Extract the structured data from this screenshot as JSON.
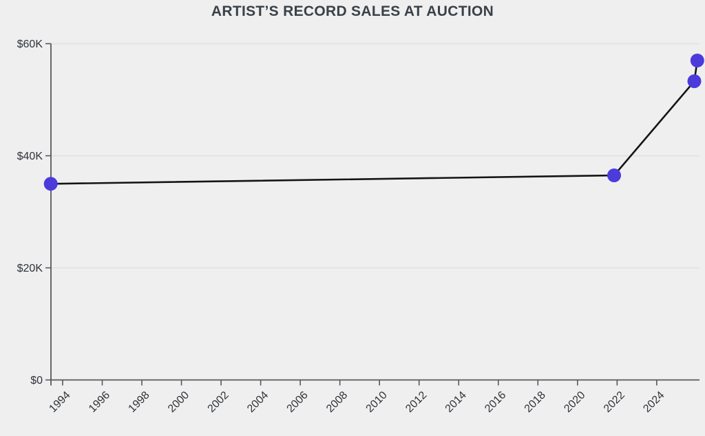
{
  "title": "ARTIST’S RECORD SALES AT AUCTION",
  "chart_data": {
    "type": "line",
    "title": "ARTIST’S RECORD SALES AT AUCTION",
    "xlabel": "",
    "ylabel": "",
    "points": [
      {
        "x": 1993.4,
        "y": 35000
      },
      {
        "x": 2021.85,
        "y": 36500
      },
      {
        "x": 2025.9,
        "y": 53300
      },
      {
        "x": 2026.05,
        "y": 57000
      }
    ],
    "x_ticks": [
      1994,
      1996,
      1998,
      2000,
      2002,
      2004,
      2006,
      2008,
      2010,
      2012,
      2014,
      2016,
      2018,
      2020,
      2022,
      2024
    ],
    "y_ticks": [
      0,
      20000,
      40000,
      60000
    ],
    "y_tick_labels": [
      "$0",
      "$20K",
      "$40K",
      "$60K"
    ],
    "xlim": [
      1993.41,
      2026.16
    ],
    "ylim": [
      0,
      60000
    ],
    "grid": true,
    "legend": "none",
    "colors": {
      "background": "#efeff0",
      "grid": "#e3e3e6",
      "axis": "#55575a",
      "tick_text": "#2f3337",
      "title_text": "#3a4147",
      "line": "#141414",
      "point": "#4b3bdb"
    }
  }
}
